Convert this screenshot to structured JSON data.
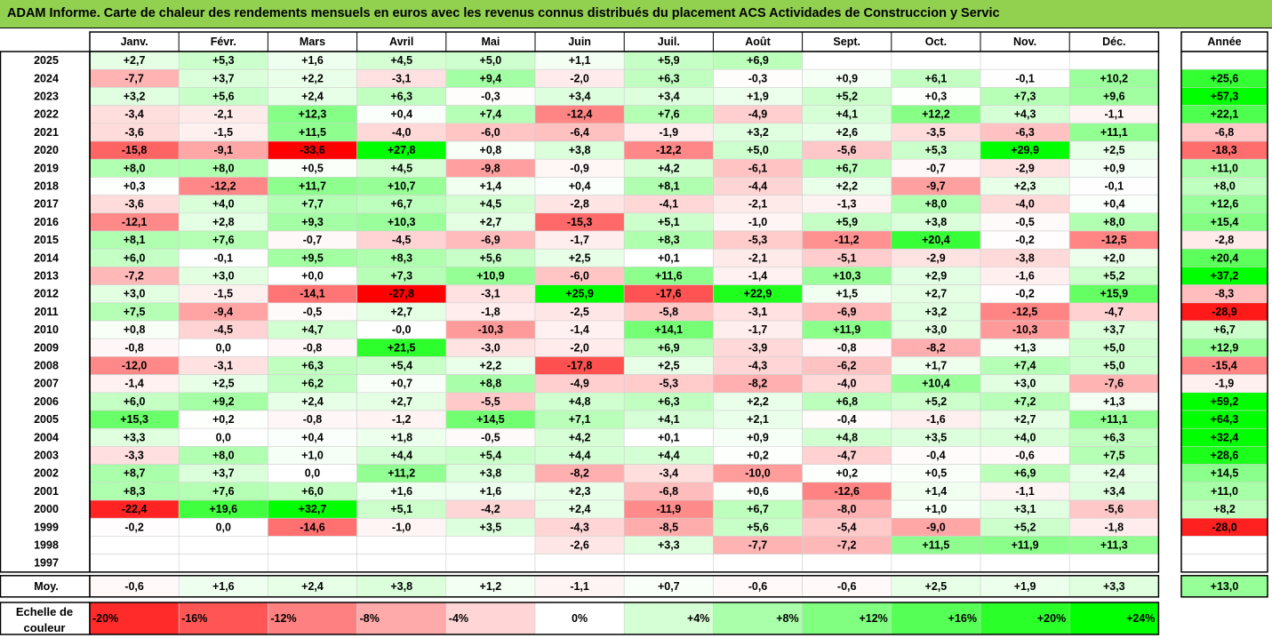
{
  "title": "ADAM Informe. Carte de chaleur des rendements mensuels en euros avec les revenus connus distribués du placement ACS Actividades de Construccion y Servic",
  "chart_data": {
    "type": "heatmap",
    "months": [
      "Janv.",
      "Févr.",
      "Mars",
      "Avril",
      "Mai",
      "Juin",
      "Juil.",
      "Août",
      "Sept.",
      "Oct.",
      "Nov.",
      "Déc."
    ],
    "year_header": "Année",
    "rows": [
      {
        "year": "2025",
        "months": [
          "+2,7",
          "+5,3",
          "+1,6",
          "+4,5",
          "+5,0",
          "+1,1",
          "+5,9",
          "+6,9",
          "",
          "",
          "",
          ""
        ],
        "annual": ""
      },
      {
        "year": "2024",
        "months": [
          "-7,7",
          "+3,7",
          "+2,2",
          "-3,1",
          "+9,4",
          "-2,0",
          "+6,3",
          "-0,3",
          "+0,9",
          "+6,1",
          "-0,1",
          "+10,2"
        ],
        "annual": "+25,6"
      },
      {
        "year": "2023",
        "months": [
          "+3,2",
          "+5,6",
          "+2,4",
          "+6,3",
          "-0,3",
          "+3,4",
          "+3,4",
          "+1,9",
          "+5,2",
          "+0,3",
          "+7,3",
          "+9,6"
        ],
        "annual": "+57,3"
      },
      {
        "year": "2022",
        "months": [
          "-3,4",
          "-2,1",
          "+12,3",
          "+0,4",
          "+7,4",
          "-12,4",
          "+7,6",
          "-4,9",
          "+4,1",
          "+12,2",
          "+4,3",
          "-1,1"
        ],
        "annual": "+22,1"
      },
      {
        "year": "2021",
        "months": [
          "-3,6",
          "-1,5",
          "+11,5",
          "-4,0",
          "-6,0",
          "-6,4",
          "-1,9",
          "+3,2",
          "+2,6",
          "-3,5",
          "-6,3",
          "+11,1"
        ],
        "annual": "-6,8"
      },
      {
        "year": "2020",
        "months": [
          "-15,8",
          "-9,1",
          "-33,6",
          "+27,8",
          "+0,8",
          "+3,8",
          "-12,2",
          "+5,0",
          "-5,6",
          "+5,3",
          "+29,9",
          "+2,5"
        ],
        "annual": "-18,3"
      },
      {
        "year": "2019",
        "months": [
          "+8,0",
          "+8,0",
          "+0,5",
          "+4,5",
          "-9,8",
          "-0,9",
          "+4,2",
          "-6,1",
          "+6,7",
          "-0,7",
          "-2,9",
          "+0,9"
        ],
        "annual": "+11,0"
      },
      {
        "year": "2018",
        "months": [
          "+0,3",
          "-12,2",
          "+11,7",
          "+10,7",
          "+1,4",
          "+0,4",
          "+8,1",
          "-4,4",
          "+2,2",
          "-9,7",
          "+2,3",
          "-0,1"
        ],
        "annual": "+8,0"
      },
      {
        "year": "2017",
        "months": [
          "-3,6",
          "+4,0",
          "+7,7",
          "+6,7",
          "+4,5",
          "-2,8",
          "-4,1",
          "-2,1",
          "-1,3",
          "+8,0",
          "-4,0",
          "+0,4"
        ],
        "annual": "+12,6"
      },
      {
        "year": "2016",
        "months": [
          "-12,1",
          "+2,8",
          "+9,3",
          "+10,3",
          "+2,7",
          "-15,3",
          "+5,1",
          "-1,0",
          "+5,9",
          "+3,8",
          "-0,5",
          "+8,0"
        ],
        "annual": "+15,4"
      },
      {
        "year": "2015",
        "months": [
          "+8,1",
          "+7,6",
          "-0,7",
          "-4,5",
          "-6,9",
          "-1,7",
          "+8,3",
          "-5,3",
          "-11,2",
          "+20,4",
          "-0,2",
          "-12,5"
        ],
        "annual": "-2,8"
      },
      {
        "year": "2014",
        "months": [
          "+6,0",
          "-0,1",
          "+9,5",
          "+8,3",
          "+5,6",
          "+2,5",
          "+0,1",
          "-2,1",
          "-5,1",
          "-2,9",
          "-3,8",
          "+2,0"
        ],
        "annual": "+20,4"
      },
      {
        "year": "2013",
        "months": [
          "-7,2",
          "+3,0",
          "+0,0",
          "+7,3",
          "+10,9",
          "-6,0",
          "+11,6",
          "-1,4",
          "+10,3",
          "+2,9",
          "-1,6",
          "+5,2"
        ],
        "annual": "+37,2"
      },
      {
        "year": "2012",
        "months": [
          "+3,0",
          "-1,5",
          "-14,1",
          "-27,8",
          "-3,1",
          "+25,9",
          "-17,6",
          "+22,9",
          "+1,5",
          "+2,7",
          "-0,2",
          "+15,9"
        ],
        "annual": "-8,3"
      },
      {
        "year": "2011",
        "months": [
          "+7,5",
          "-9,4",
          "-0,5",
          "+2,7",
          "-1,8",
          "-2,5",
          "-5,8",
          "-3,1",
          "-6,9",
          "+3,2",
          "-12,5",
          "-4,7"
        ],
        "annual": "-28,9"
      },
      {
        "year": "2010",
        "months": [
          "+0,8",
          "-4,5",
          "+4,7",
          "-0,0",
          "-10,3",
          "-1,4",
          "+14,1",
          "-1,7",
          "+11,9",
          "+3,0",
          "-10,3",
          "+3,7"
        ],
        "annual": "+6,7"
      },
      {
        "year": "2009",
        "months": [
          "-0,8",
          "0,0",
          "-0,8",
          "+21,5",
          "-3,0",
          "-2,0",
          "+6,9",
          "-3,9",
          "-0,8",
          "-8,2",
          "+1,3",
          "+5,0"
        ],
        "annual": "+12,9"
      },
      {
        "year": "2008",
        "months": [
          "-12,0",
          "-3,1",
          "+6,3",
          "+5,4",
          "+2,2",
          "-17,8",
          "+2,5",
          "-4,3",
          "-6,2",
          "+1,7",
          "+7,4",
          "+5,0"
        ],
        "annual": "-15,4"
      },
      {
        "year": "2007",
        "months": [
          "-1,4",
          "+2,5",
          "+6,2",
          "+0,7",
          "+8,8",
          "-4,9",
          "-5,3",
          "-8,2",
          "-4,0",
          "+10,4",
          "+3,0",
          "-7,6"
        ],
        "annual": "-1,9"
      },
      {
        "year": "2006",
        "months": [
          "+6,0",
          "+9,2",
          "+2,4",
          "+2,7",
          "-5,5",
          "+4,8",
          "+6,3",
          "+2,2",
          "+6,8",
          "+5,2",
          "+7,2",
          "+1,3"
        ],
        "annual": "+59,2"
      },
      {
        "year": "2005",
        "months": [
          "+15,3",
          "+0,2",
          "-0,8",
          "-1,2",
          "+14,5",
          "+7,1",
          "+4,1",
          "+2,1",
          "-0,4",
          "-1,6",
          "+2,7",
          "+11,1"
        ],
        "annual": "+64,3"
      },
      {
        "year": "2004",
        "months": [
          "+3,3",
          "0,0",
          "+0,4",
          "+1,8",
          "-0,5",
          "+4,2",
          "+0,1",
          "+0,9",
          "+4,8",
          "+3,5",
          "+4,0",
          "+6,3"
        ],
        "annual": "+32,4"
      },
      {
        "year": "2003",
        "months": [
          "-3,3",
          "+8,0",
          "+1,0",
          "+4,4",
          "+5,4",
          "+4,4",
          "+4,4",
          "+0,2",
          "-4,7",
          "-0,4",
          "-0,6",
          "+7,5"
        ],
        "annual": "+28,6"
      },
      {
        "year": "2002",
        "months": [
          "+8,7",
          "+3,7",
          "0,0",
          "+11,2",
          "+3,8",
          "-8,2",
          "-3,4",
          "-10,0",
          "+0,2",
          "+0,5",
          "+6,9",
          "+2,4"
        ],
        "annual": "+14,5"
      },
      {
        "year": "2001",
        "months": [
          "+8,3",
          "+7,6",
          "+6,0",
          "+1,6",
          "+1,6",
          "+2,3",
          "-6,8",
          "+0,6",
          "-12,6",
          "+1,4",
          "-1,1",
          "+3,4"
        ],
        "annual": "+11,0"
      },
      {
        "year": "2000",
        "months": [
          "-22,4",
          "+19,6",
          "+32,7",
          "+5,1",
          "-4,2",
          "+2,4",
          "-11,9",
          "+6,7",
          "-8,0",
          "+1,0",
          "+3,1",
          "-5,6"
        ],
        "annual": "+8,2"
      },
      {
        "year": "1999",
        "months": [
          "-0,2",
          "0,0",
          "-14,6",
          "-1,0",
          "+3,5",
          "-4,3",
          "-8,5",
          "+5,6",
          "-5,4",
          "-9,0",
          "+5,2",
          "-1,8"
        ],
        "annual": "-28,0"
      },
      {
        "year": "1998",
        "months": [
          "",
          "",
          "",
          "",
          "",
          "-2,6",
          "+3,3",
          "-7,7",
          "-7,2",
          "+11,5",
          "+11,9",
          "+11,3"
        ],
        "annual": ""
      },
      {
        "year": "1997",
        "months": [
          "",
          "",
          "",
          "",
          "",
          "",
          "",
          "",
          "",
          "",
          "",
          ""
        ],
        "annual": ""
      }
    ],
    "average": {
      "label": "Moy.",
      "months": [
        "-0,6",
        "+1,6",
        "+2,4",
        "+3,8",
        "+1,2",
        "-1,1",
        "+0,7",
        "-0,6",
        "-0,6",
        "+2,5",
        "+1,9",
        "+3,3"
      ],
      "annual": "+13,0"
    },
    "legend": {
      "label_line1": "Echelle de",
      "label_line2": "couleur",
      "steps": [
        "-20%",
        "-16%",
        "-12%",
        "-8%",
        "-4%",
        "0%",
        "+4%",
        "+8%",
        "+12%",
        "+16%",
        "+20%",
        "+24%"
      ],
      "step_values": [
        -20,
        -16,
        -12,
        -8,
        -4,
        0,
        4,
        8,
        12,
        16,
        20,
        24
      ]
    },
    "colors": {
      "negative_max": "#ff0000",
      "neutral": "#ffffff",
      "positive_max": "#00ff00",
      "title_bg": "#92d050"
    }
  }
}
